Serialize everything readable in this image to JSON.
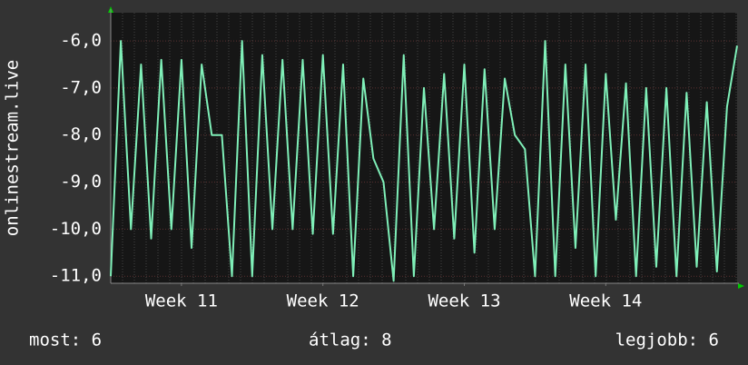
{
  "chart_data": {
    "type": "line",
    "y_label": "onlinestream.live",
    "x": [
      0,
      0.5,
      1,
      1.5,
      2,
      2.5,
      3,
      3.5,
      4,
      4.5,
      5,
      5.5,
      6,
      6.5,
      7,
      7.5,
      8,
      8.5,
      9,
      9.5,
      10,
      10.5,
      11,
      11.5,
      12,
      12.5,
      13,
      13.5,
      14,
      14.5,
      15,
      15.5,
      16,
      16.5,
      17,
      17.5,
      18,
      18.5,
      19,
      19.5,
      20,
      20.5,
      21,
      21.5,
      22,
      22.5,
      23,
      23.5,
      24,
      24.5,
      25,
      25.5,
      26,
      26.5,
      27,
      27.5,
      28,
      28.5,
      29,
      29.5,
      30,
      30.5,
      31
    ],
    "series": [
      {
        "color": "#7fefb8",
        "values": [
          -11,
          -6.0,
          -10,
          -6.5,
          -10.2,
          -6.4,
          -10,
          -6.4,
          -10.4,
          -6.5,
          -8,
          -8,
          -11,
          -6,
          -11,
          -6.3,
          -10,
          -6.4,
          -10,
          -6.4,
          -10.1,
          -6.3,
          -10.1,
          -6.5,
          -11,
          -6.8,
          -8.5,
          -9,
          -11.1,
          -6.3,
          -11,
          -7,
          -10,
          -6.7,
          -10.2,
          -6.5,
          -10.5,
          -6.6,
          -10,
          -6.8,
          -8,
          -8.3,
          -11,
          -6,
          -11,
          -6.5,
          -10.4,
          -6.5,
          -11,
          -6.7,
          -9.8,
          -6.9,
          -11,
          -7,
          -10.8,
          -7,
          -11,
          -7.1,
          -10.8,
          -7.3,
          -10.9,
          -7.4,
          -6.1
        ]
      }
    ],
    "xlim": [
      0,
      31
    ],
    "xticks": [
      {
        "value": 3.5,
        "label": "Week 11"
      },
      {
        "value": 10.5,
        "label": "Week 12"
      },
      {
        "value": 17.5,
        "label": "Week 13"
      },
      {
        "value": 24.5,
        "label": "Week 14"
      }
    ],
    "ylim": [
      -11.15,
      -5.4
    ],
    "yticks": [
      {
        "value": -6,
        "label": "-6,0"
      },
      {
        "value": -7,
        "label": "-7,0"
      },
      {
        "value": -8,
        "label": "-8,0"
      },
      {
        "value": -9,
        "label": "-9,0"
      },
      {
        "value": -10,
        "label": "-10,0"
      },
      {
        "value": -11,
        "label": "-11,0"
      }
    ],
    "grid": true,
    "footer": [
      "most: 6",
      "átlag: 8",
      "legjobb: 6"
    ]
  }
}
